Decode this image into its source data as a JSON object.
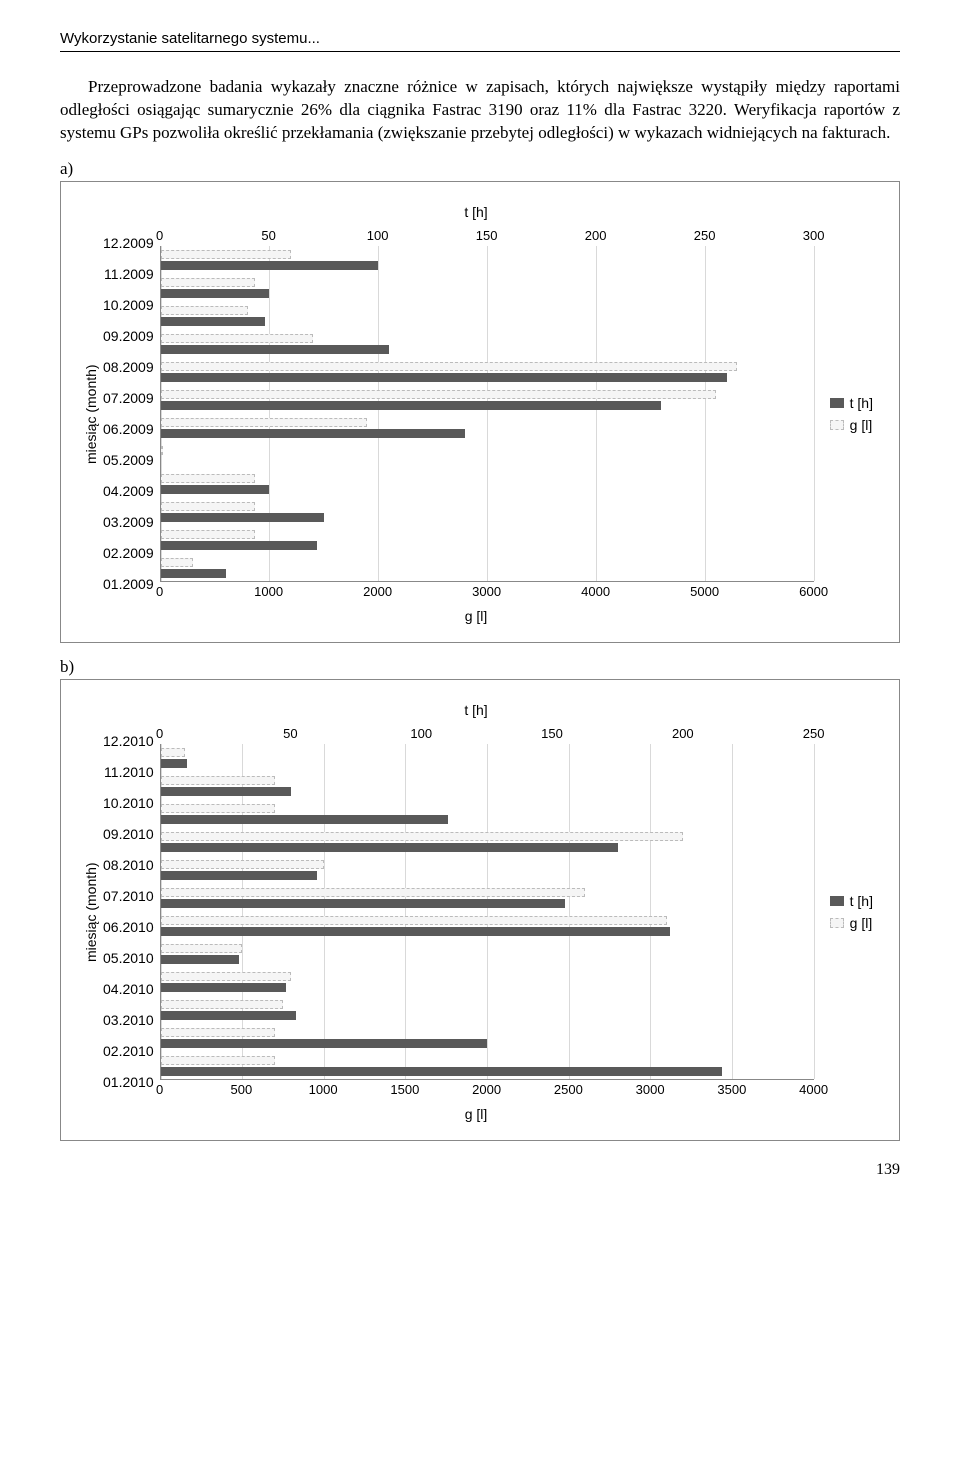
{
  "header": {
    "running": "Wykorzystanie satelitarnego systemu..."
  },
  "paragraph": "Przeprowadzone badania wykazały znaczne różnice w zapisach, których największe wystąpiły między raportami odległości osiągając sumarycznie 26% dla ciągnika Fastrac 3190 oraz 11% dla Fastrac 3220. Weryfikacja raportów z systemu GPs pozwoliła określić przekłamania (zwiększanie przebytej odległości) w wykazach widniejących na fakturach.",
  "labels": {
    "a": "a)",
    "b": "b)"
  },
  "legend": {
    "t": "t [h]",
    "g": "g [l]"
  },
  "yAxisLabel": "miesiąc (month)",
  "chartA": {
    "topTitle": "t [h]",
    "bottomTitle": "g [l]",
    "topTicks": [
      0,
      50,
      100,
      150,
      200,
      250,
      300
    ],
    "topMax": 300,
    "bottomTicks": [
      0,
      1000,
      2000,
      3000,
      4000,
      5000,
      6000
    ],
    "bottomMax": 6000,
    "categories": [
      "12.2009",
      "11.2009",
      "10.2009",
      "09.2009",
      "08.2009",
      "07.2009",
      "06.2009",
      "05.2009",
      "04.2009",
      "03.2009",
      "02.2009",
      "01.2009"
    ],
    "g": [
      1200,
      870,
      800,
      1400,
      5300,
      5100,
      1900,
      0,
      870,
      870,
      870,
      300
    ],
    "t": [
      100,
      50,
      48,
      105,
      260,
      230,
      140,
      0,
      50,
      75,
      72,
      30
    ],
    "colors": {
      "t": "#595959",
      "g_fill": "#f5f5f5",
      "g_border": "#bbbbbb",
      "grid": "#d9d9d9",
      "axis": "#888888"
    }
  },
  "chartB": {
    "topTitle": "t [h]",
    "bottomTitle": "g [l]",
    "topTicks": [
      0,
      50,
      100,
      150,
      200,
      250
    ],
    "topMax": 250,
    "bottomTicks": [
      0,
      500,
      1000,
      1500,
      2000,
      2500,
      3000,
      3500,
      4000
    ],
    "bottomMax": 4000,
    "categories": [
      "12.2010",
      "11.2010",
      "10.2010",
      "09.2010",
      "08.2010",
      "07.2010",
      "06.2010",
      "05.2010",
      "04.2010",
      "03.2010",
      "02.2010",
      "01.2010"
    ],
    "g": [
      150,
      700,
      700,
      3200,
      1000,
      2600,
      3100,
      500,
      800,
      750,
      700,
      700
    ],
    "t": [
      10,
      50,
      110,
      175,
      60,
      155,
      195,
      30,
      48,
      52,
      125,
      215
    ],
    "colors": {
      "t": "#595959",
      "g_fill": "#f5f5f5",
      "g_border": "#bbbbbb",
      "grid": "#d9d9d9",
      "axis": "#888888"
    }
  },
  "pageNumber": "139"
}
